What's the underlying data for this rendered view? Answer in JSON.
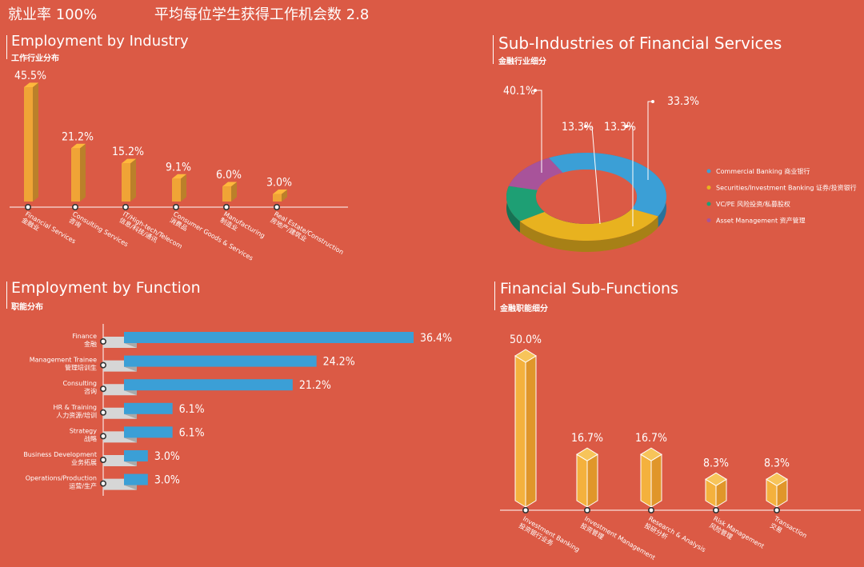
{
  "header": {
    "stat1": "就业率 100%",
    "stat2": "平均每位学生获得工作机会数 2.8"
  },
  "colors": {
    "background": "#db5a45",
    "orange": "#f0a436",
    "blue": "#3b9fd6",
    "gold": "#e8b21f",
    "green": "#1e9f74",
    "purple": "#a8539a"
  },
  "sections": {
    "industry": {
      "title": "Employment by Industry",
      "subtitle": "工作行业分布"
    },
    "financial": {
      "title": "Sub-Industries of Financial Services",
      "subtitle": "金融行业细分"
    },
    "function": {
      "title": "Employment by Function",
      "subtitle": "职能分布"
    },
    "subfunction": {
      "title": "Financial Sub-Functions",
      "subtitle": "金融职能细分"
    }
  },
  "chart_data": [
    {
      "id": "industry",
      "type": "bar",
      "title": "Employment by Industry",
      "categories": [
        [
          "Financial Services",
          "金融业"
        ],
        [
          "Consulting Services",
          "咨询"
        ],
        [
          "IT/High-tech/Telecom",
          "信息/科技/通讯"
        ],
        [
          "Consumer Goods & Services",
          "消费品"
        ],
        [
          "Manufacturing",
          "制造业"
        ],
        [
          "Real Estate/Construction",
          "房地产/建筑业"
        ]
      ],
      "values": [
        45.5,
        21.2,
        15.2,
        9.1,
        6.0,
        3.0
      ],
      "labels": [
        "45.5%",
        "21.2%",
        "15.2%",
        "9.1%",
        "6.0%",
        "3.0%"
      ]
    },
    {
      "id": "financial",
      "type": "pie",
      "title": "Sub-Industries of Financial Services",
      "categories": [
        "Commercial Banking 商业银行",
        "Securities/Investment Banking 证券/投资银行",
        "VC/PE 风险投资/私募股权",
        "Asset Management 资产管理"
      ],
      "values": [
        40.1,
        33.3,
        13.3,
        13.3
      ],
      "labels": [
        "40.1%",
        "33.3%",
        "13.3%",
        "13.3%"
      ],
      "legend": "right"
    },
    {
      "id": "function",
      "type": "bar",
      "orientation": "horizontal",
      "title": "Employment by Function",
      "categories": [
        [
          "Finance",
          "金融"
        ],
        [
          "Management Trainee",
          "管理培训生"
        ],
        [
          "Consulting",
          "咨询"
        ],
        [
          "HR & Training",
          "人力资源/培训"
        ],
        [
          "Strategy",
          "战略"
        ],
        [
          "Business Development",
          "业务拓展"
        ],
        [
          "Operations/Production",
          "运营/生产"
        ]
      ],
      "values": [
        36.4,
        24.2,
        21.2,
        6.1,
        6.1,
        3.0,
        3.0
      ],
      "labels": [
        "36.4%",
        "24.2%",
        "21.2%",
        "6.1%",
        "6.1%",
        "3.0%",
        "3.0%"
      ]
    },
    {
      "id": "subfunction",
      "type": "bar",
      "title": "Financial Sub-Functions",
      "categories": [
        [
          "Investment Banking",
          "投资银行业务"
        ],
        [
          "Investment Management",
          "投资管理"
        ],
        [
          "Research & Analysis",
          "投研分析"
        ],
        [
          "Risk Management",
          "风险管理"
        ],
        [
          "Transaction",
          "交易"
        ]
      ],
      "values": [
        50.0,
        16.7,
        16.7,
        8.3,
        8.3
      ],
      "labels": [
        "50.0%",
        "16.7%",
        "16.7%",
        "8.3%",
        "8.3%"
      ]
    }
  ]
}
